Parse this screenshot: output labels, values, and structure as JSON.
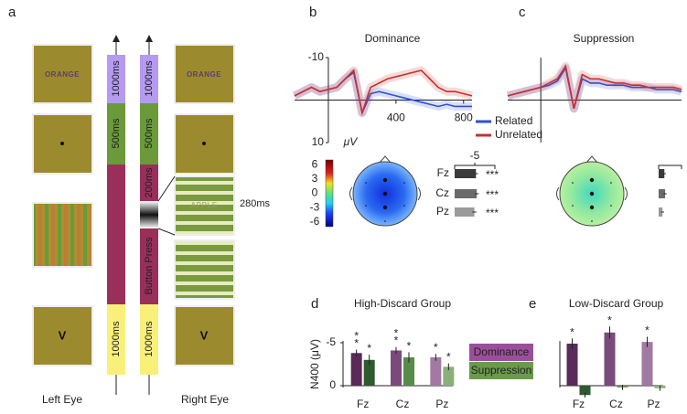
{
  "panel_labels": [
    "a",
    "b",
    "c",
    "d",
    "e"
  ],
  "panel_a": {
    "left_eye": {
      "word": "ORANGE",
      "target": "V",
      "label": "Left Eye"
    },
    "right_eye": {
      "word": "ORANGE",
      "prime": "APPLE",
      "target": "V",
      "label": "Right Eye"
    },
    "left_timeline": [
      "1000ms",
      "500ms",
      "1000ms"
    ],
    "right_timeline": [
      "1000ms",
      "500ms",
      "200ms",
      "Button Press",
      "1000ms"
    ],
    "flash_duration": "280ms"
  },
  "chart_data": [
    {
      "type": "line",
      "title": "Dominance",
      "y_label": "μV",
      "x": [
        -200,
        -150,
        -100,
        -50,
        0,
        50,
        100,
        150,
        200,
        250,
        300,
        350,
        400,
        450,
        500,
        550,
        600,
        650,
        700,
        750,
        800,
        850
      ],
      "xlim": [
        -200,
        850
      ],
      "ylim": [
        10,
        -10
      ],
      "xticks": [
        400,
        800
      ],
      "yticks": [
        -10,
        10
      ],
      "series": [
        {
          "name": "Related",
          "color": "#2b4fd6",
          "values": [
            -1,
            -2,
            -3,
            -2,
            -2.5,
            -3,
            -5,
            -6.5,
            3,
            -1.5,
            -2,
            -1.5,
            -1,
            -0.5,
            0,
            0.5,
            1,
            1.5,
            1,
            1.5,
            1.5,
            1.5
          ]
        },
        {
          "name": "Unrelated",
          "color": "#c8302c",
          "values": [
            -1,
            -2,
            -3,
            -2,
            -2.5,
            -3,
            -5,
            -7,
            3,
            -3,
            -4,
            -5,
            -5.5,
            -6,
            -6.5,
            -7,
            -5,
            -3,
            -2,
            -2,
            -1.5,
            -1
          ]
        }
      ],
      "clim": [
        -7,
        7
      ],
      "colorbar_ticks": [
        6,
        3,
        0,
        -3,
        -6
      ]
    },
    {
      "type": "hbar",
      "categories": [
        "Fz",
        "Cz",
        "Pz"
      ],
      "values": [
        -5.3,
        -5.5,
        -4.9
      ],
      "errors": [
        0.5,
        0.5,
        0.5
      ],
      "xlim": [
        0,
        -10
      ],
      "xticks": [
        -5
      ],
      "annotations": [
        "***",
        "***",
        "***"
      ],
      "colors": [
        "#3a3a3a",
        "#6a6a6a",
        "#9a9a9a"
      ]
    },
    {
      "type": "line",
      "title": "Suppression",
      "x": [
        -200,
        -150,
        -100,
        -50,
        0,
        50,
        100,
        150,
        200,
        250,
        300,
        350,
        400,
        450,
        500,
        550,
        600,
        650,
        700,
        750,
        800,
        850
      ],
      "xlim": [
        -200,
        850
      ],
      "ylim": [
        10,
        -10
      ],
      "series": [
        {
          "color": "#2b4fd6",
          "values": [
            -1,
            -1.5,
            -2,
            -2.5,
            -3,
            -3.5,
            -4.5,
            -7.5,
            2,
            -5,
            -4,
            -4,
            -3.5,
            -3.5,
            -3.5,
            -3,
            -3,
            -3,
            -2.5,
            -2.5,
            -2.5,
            -2
          ]
        },
        {
          "color": "#c8302c",
          "values": [
            -1,
            -1.5,
            -2,
            -2.5,
            -3,
            -4,
            -5,
            -8,
            2,
            -6,
            -5,
            -5,
            -4.5,
            -4,
            -4,
            -3.5,
            -3.5,
            -3,
            -3,
            -3,
            -3,
            -2.5
          ]
        }
      ]
    },
    {
      "type": "hbar",
      "values": [
        -1.5,
        -1.7,
        -1.0
      ],
      "errors": [
        0.4,
        0.4,
        0.4
      ],
      "xlim": [
        0,
        -6
      ],
      "colors": [
        "#3a3a3a",
        "#6a6a6a",
        "#9a9a9a"
      ]
    },
    {
      "type": "bar",
      "title": "High-Discard Group",
      "y_label": "N400 (μV)",
      "categories": [
        "Fz",
        "Cz",
        "Pz"
      ],
      "ylim": [
        1,
        -6
      ],
      "yticks": [
        -5,
        0
      ],
      "series": [
        {
          "name": "Dominance",
          "color": "#9b4f9b",
          "bar_colors": [
            "#5a2a5a",
            "#7a4a7a",
            "#a07aa0"
          ],
          "values": [
            -3.8,
            -4.1,
            -3.3
          ],
          "errors": [
            0.4,
            0.4,
            0.4
          ],
          "significance": [
            "**",
            "**",
            "*"
          ]
        },
        {
          "name": "Suppression",
          "color": "#6a9a4a",
          "bar_colors": [
            "#2e5a2e",
            "#5a8a4a",
            "#8ab07a"
          ],
          "values": [
            -3.0,
            -3.3,
            -2.2
          ],
          "errors": [
            0.6,
            0.6,
            0.4
          ],
          "significance": [
            "*",
            "*",
            "*"
          ]
        }
      ]
    },
    {
      "type": "bar",
      "title": "Low-Discard Group",
      "categories": [
        "Fz",
        "Cz",
        "Pz"
      ],
      "ylim": [
        1.5,
        -6.5
      ],
      "series": [
        {
          "bar_colors": [
            "#5a2a5a",
            "#7a4a7a",
            "#a07aa0"
          ],
          "values": [
            -4.9,
            -6.2,
            -5.1
          ],
          "errors": [
            0.6,
            0.7,
            0.6
          ],
          "significance": [
            "*",
            "*",
            "*"
          ]
        },
        {
          "bar_colors": [
            "#2e5a2e",
            "#5a8a4a",
            "#8ab07a"
          ],
          "values": [
            1.1,
            0.2,
            0.3
          ],
          "errors": [
            0.3,
            0.3,
            0.3
          ]
        }
      ]
    }
  ]
}
